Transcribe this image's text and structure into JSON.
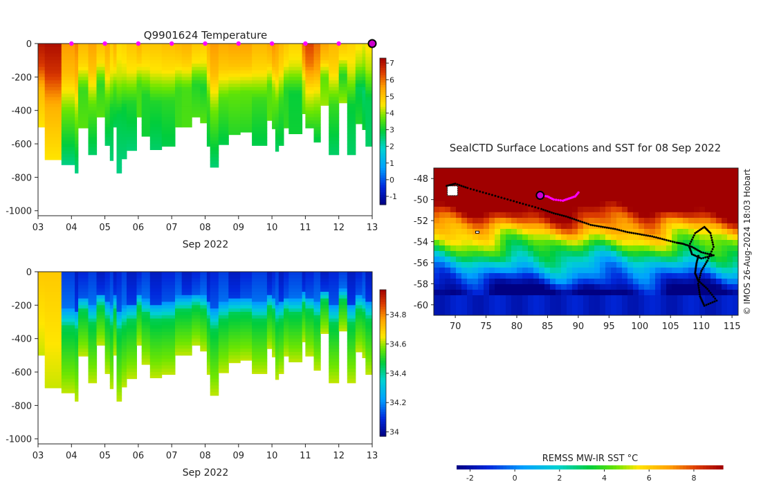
{
  "chart_data": [
    {
      "type": "heatmap",
      "panel": "temperature-section",
      "title": "Q9901624  Temperature",
      "xlabel": "Sep 2022",
      "ylabel": "",
      "x_ticks": [
        "03",
        "04",
        "05",
        "06",
        "07",
        "08",
        "09",
        "10",
        "11",
        "12",
        "13"
      ],
      "y_ticks": [
        0,
        -200,
        -400,
        -600,
        -800,
        -1000
      ],
      "xlim": [
        3,
        13
      ],
      "ylim": [
        -1030,
        0
      ],
      "colorbar": {
        "ticks": [
          7,
          6,
          5,
          4,
          3,
          2,
          1,
          0,
          -1
        ],
        "range": [
          -1.5,
          7.3
        ]
      },
      "marker_days": [
        4,
        5,
        6,
        7,
        8,
        9,
        10,
        11,
        12
      ],
      "current_day": 13,
      "profiles": [
        {
          "x0": 3.0,
          "x1": 3.2,
          "depth": 500,
          "surface": 7.0,
          "deep": 4.5
        },
        {
          "x0": 3.2,
          "x1": 3.7,
          "depth": 695,
          "surface": 7.1,
          "deep": 4.5
        },
        {
          "x0": 3.7,
          "x1": 4.1,
          "depth": 725,
          "surface": 5.6,
          "deep": 2.4
        },
        {
          "x0": 4.1,
          "x1": 4.2,
          "depth": 775,
          "surface": 5.8,
          "deep": 2.4
        },
        {
          "x0": 4.2,
          "x1": 4.5,
          "depth": 505,
          "surface": 5.2,
          "deep": 3.6
        },
        {
          "x0": 4.5,
          "x1": 4.75,
          "depth": 665,
          "surface": 5.5,
          "deep": 2.6
        },
        {
          "x0": 4.75,
          "x1": 5.0,
          "depth": 440,
          "surface": 5.1,
          "deep": 3.6
        },
        {
          "x0": 5.0,
          "x1": 5.15,
          "depth": 610,
          "surface": 5.4,
          "deep": 2.6
        },
        {
          "x0": 5.15,
          "x1": 5.25,
          "depth": 700,
          "surface": 4.9,
          "deep": 2.5
        },
        {
          "x0": 5.25,
          "x1": 5.35,
          "depth": 500,
          "surface": 5.3,
          "deep": 2.7
        },
        {
          "x0": 5.35,
          "x1": 5.5,
          "depth": 775,
          "surface": 4.7,
          "deep": 2.4
        },
        {
          "x0": 5.5,
          "x1": 5.65,
          "depth": 690,
          "surface": 4.8,
          "deep": 2.5
        },
        {
          "x0": 5.65,
          "x1": 5.95,
          "depth": 640,
          "surface": 5.0,
          "deep": 2.5
        },
        {
          "x0": 5.95,
          "x1": 6.1,
          "depth": 440,
          "surface": 5.3,
          "deep": 3.5
        },
        {
          "x0": 6.1,
          "x1": 6.35,
          "depth": 555,
          "surface": 5.0,
          "deep": 3.0
        },
        {
          "x0": 6.35,
          "x1": 6.7,
          "depth": 635,
          "surface": 5.0,
          "deep": 2.6
        },
        {
          "x0": 6.7,
          "x1": 7.1,
          "depth": 615,
          "surface": 5.1,
          "deep": 2.8
        },
        {
          "x0": 7.1,
          "x1": 7.3,
          "depth": 500,
          "surface": 5.2,
          "deep": 3.4
        },
        {
          "x0": 7.3,
          "x1": 7.6,
          "depth": 500,
          "surface": 5.3,
          "deep": 3.5
        },
        {
          "x0": 7.6,
          "x1": 7.85,
          "depth": 440,
          "surface": 5.0,
          "deep": 3.5
        },
        {
          "x0": 7.85,
          "x1": 8.05,
          "depth": 475,
          "surface": 4.9,
          "deep": 3.6
        },
        {
          "x0": 8.05,
          "x1": 8.15,
          "depth": 615,
          "surface": 5.3,
          "deep": 2.8
        },
        {
          "x0": 8.15,
          "x1": 8.4,
          "depth": 740,
          "surface": 5.6,
          "deep": 2.5
        },
        {
          "x0": 8.4,
          "x1": 8.7,
          "depth": 605,
          "surface": 5.4,
          "deep": 2.8
        },
        {
          "x0": 8.7,
          "x1": 9.05,
          "depth": 545,
          "surface": 5.5,
          "deep": 3.2
        },
        {
          "x0": 9.05,
          "x1": 9.4,
          "depth": 530,
          "surface": 5.5,
          "deep": 3.2
        },
        {
          "x0": 9.4,
          "x1": 9.85,
          "depth": 610,
          "surface": 5.2,
          "deep": 2.8
        },
        {
          "x0": 9.85,
          "x1": 10.0,
          "depth": 460,
          "surface": 5.4,
          "deep": 3.6
        },
        {
          "x0": 10.0,
          "x1": 10.1,
          "depth": 510,
          "surface": 5.7,
          "deep": 3.2
        },
        {
          "x0": 10.1,
          "x1": 10.2,
          "depth": 645,
          "surface": 5.5,
          "deep": 2.6
        },
        {
          "x0": 10.2,
          "x1": 10.35,
          "depth": 610,
          "surface": 5.2,
          "deep": 2.8
        },
        {
          "x0": 10.35,
          "x1": 10.5,
          "depth": 505,
          "surface": 5.0,
          "deep": 3.3
        },
        {
          "x0": 10.5,
          "x1": 10.9,
          "depth": 540,
          "surface": 4.8,
          "deep": 3.0
        },
        {
          "x0": 10.9,
          "x1": 11.0,
          "depth": 420,
          "surface": 6.0,
          "deep": 3.6
        },
        {
          "x0": 11.0,
          "x1": 11.25,
          "depth": 505,
          "surface": 6.4,
          "deep": 3.2
        },
        {
          "x0": 11.25,
          "x1": 11.45,
          "depth": 590,
          "surface": 6.0,
          "deep": 2.8
        },
        {
          "x0": 11.45,
          "x1": 11.7,
          "depth": 370,
          "surface": 5.5,
          "deep": 4.0
        },
        {
          "x0": 11.7,
          "x1": 12.0,
          "depth": 665,
          "surface": 5.2,
          "deep": 2.6
        },
        {
          "x0": 12.0,
          "x1": 12.25,
          "depth": 355,
          "surface": 5.0,
          "deep": 4.0
        },
        {
          "x0": 12.25,
          "x1": 12.5,
          "depth": 665,
          "surface": 4.8,
          "deep": 2.6
        },
        {
          "x0": 12.5,
          "x1": 12.7,
          "depth": 480,
          "surface": 4.6,
          "deep": 3.2
        },
        {
          "x0": 12.7,
          "x1": 12.8,
          "depth": 515,
          "surface": 4.4,
          "deep": 3.0
        },
        {
          "x0": 12.8,
          "x1": 13.0,
          "depth": 615,
          "surface": 4.6,
          "deep": 2.6
        }
      ]
    },
    {
      "type": "heatmap",
      "panel": "salinity-section",
      "title": "",
      "xlabel": "Sep 2022",
      "x_ticks": [
        "03",
        "04",
        "05",
        "06",
        "07",
        "08",
        "09",
        "10",
        "11",
        "12",
        "13"
      ],
      "y_ticks": [
        0,
        -200,
        -400,
        -600,
        -800,
        -1000
      ],
      "xlim": [
        3,
        13
      ],
      "ylim": [
        -1030,
        0
      ],
      "colorbar": {
        "ticks": [
          34.8,
          34.6,
          34.4,
          34.2,
          34.0
        ],
        "range": [
          33.97,
          34.97
        ]
      },
      "profiles_reused_from": "temperature-section"
    },
    {
      "type": "heatmap",
      "panel": "sst-map",
      "title": "SealCTD Surface Locations and SST for 08 Sep 2022",
      "x_ticks": [
        70,
        75,
        80,
        85,
        90,
        95,
        100,
        105,
        110,
        115
      ],
      "y_ticks": [
        -48,
        -50,
        -52,
        -54,
        -56,
        -58,
        -60
      ],
      "xlim": [
        66.5,
        116
      ],
      "ylim": [
        -61,
        -47
      ],
      "current_position": {
        "lon": 83.8,
        "lat": -49.6
      },
      "recent_track_lons": [
        83.8,
        85,
        86,
        87.5,
        88.5,
        89.5,
        90.2
      ],
      "recent_track_lats": [
        -49.6,
        -49.7,
        -50,
        -50.1,
        -49.9,
        -49.7,
        -49.2
      ],
      "track_lons": [
        68.6,
        70,
        72,
        75,
        78,
        81,
        84,
        86,
        88,
        90,
        92,
        94,
        96,
        98,
        100,
        102,
        104,
        106,
        107,
        108.5,
        110,
        112,
        110,
        108.5,
        108,
        109,
        110.5,
        111.5,
        112,
        111,
        110,
        109.5,
        109.8,
        110.5,
        112.5,
        111,
        109.5,
        109,
        109.2,
        109.6
      ],
      "track_lats": [
        -48.7,
        -48.5,
        -48.9,
        -49.4,
        -49.9,
        -50.4,
        -50.9,
        -51.3,
        -51.6,
        -52.0,
        -52.4,
        -52.6,
        -52.8,
        -53.1,
        -53.3,
        -53.5,
        -53.8,
        -54.1,
        -54.2,
        -54.5,
        -55.0,
        -55.3,
        -55.6,
        -55.2,
        -54.4,
        -53.2,
        -52.6,
        -53.2,
        -54.5,
        -55.8,
        -56.8,
        -58.0,
        -59.2,
        -60.1,
        -59.6,
        -58.5,
        -57.7,
        -57.0,
        -56.1,
        -55.2
      ],
      "colorbar": {
        "label": "REMSS MW-IR SST °C",
        "ticks": [
          -2,
          0,
          2,
          4,
          6,
          8
        ],
        "range": [
          -2.6,
          9.3
        ]
      },
      "credit": "© IMOS 26-Aug-2024 18:03 Hobart"
    }
  ],
  "colors": {
    "current_marker": "#cc00cc",
    "profile_marker": "#ff00ff",
    "track": "#000000",
    "land": "#ffffff"
  }
}
